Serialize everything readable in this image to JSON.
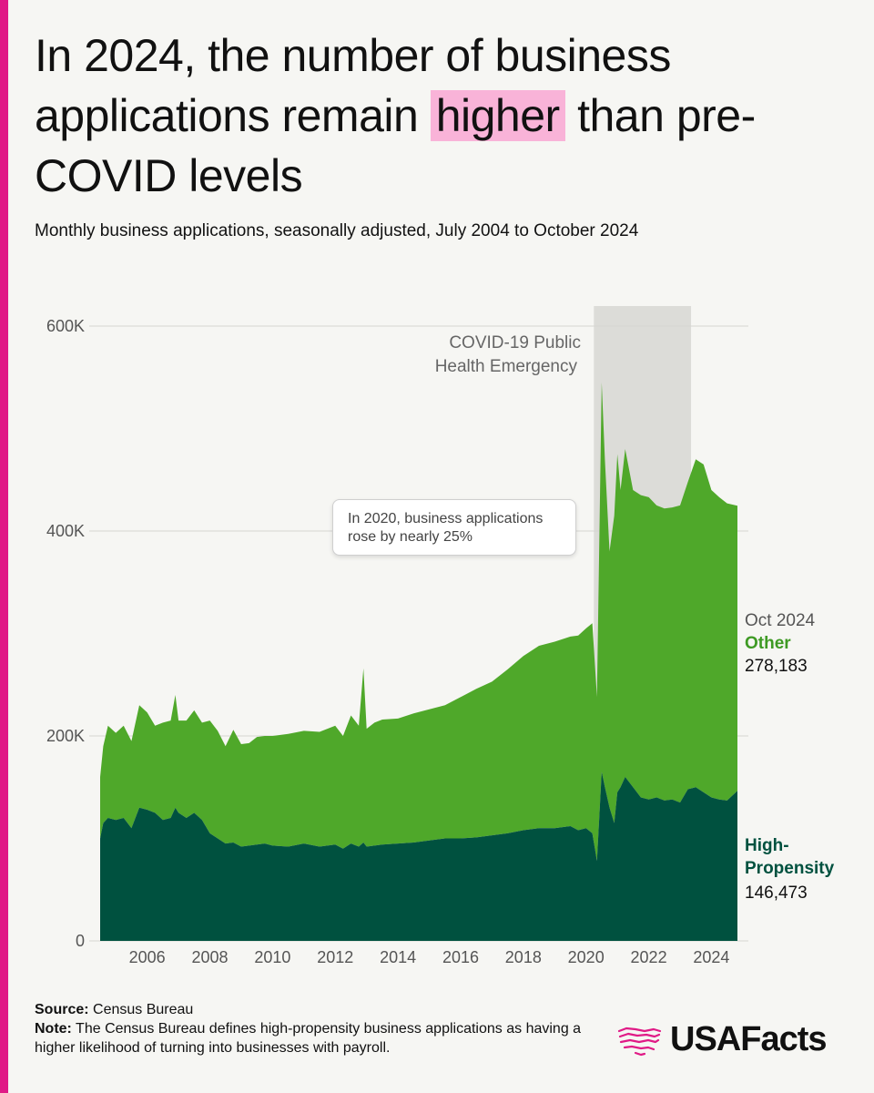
{
  "header": {
    "title_part1": "In 2024, the number of business applications remain",
    "title_highlight": "higher",
    "title_part2": "than pre-COVID levels",
    "subtitle": "Monthly business applications, seasonally adjusted, July 2004 to October 2024"
  },
  "annotations": {
    "covid_label_line1": "COVID-19 Public",
    "covid_label_line2": "Health Emergency",
    "callout_line1": "In 2020, business applications",
    "callout_line2": "rose by nearly 25%"
  },
  "end_labels": {
    "date": "Oct 2024",
    "other_label": "Other",
    "other_value": "278,183",
    "hp_label": "High-Propensity",
    "hp_value": "146,473"
  },
  "footer": {
    "source_label": "Source:",
    "source_text": "Census Bureau",
    "note_label": "Note:",
    "note_text": "The Census Bureau defines high-propensity business applications as having a higher likelihood of turning into businesses with payroll."
  },
  "logo": {
    "text": "USAFacts",
    "icon": "usa-map-lines-icon"
  },
  "colors": {
    "accent": "#e01a86",
    "highlight": "#f9b3d8",
    "other": "#4fa82a",
    "high_propensity": "#00513f",
    "covid_band": "#dcdcd8"
  },
  "chart_data": {
    "type": "area",
    "stacked": true,
    "title": "Monthly business applications, seasonally adjusted, July 2004 to October 2024",
    "ylim": [
      0,
      600000
    ],
    "yticks": [
      0,
      200000,
      400000,
      600000
    ],
    "ytick_labels": [
      "0",
      "200K",
      "400K",
      "600K"
    ],
    "xlim": [
      2004.5,
      2024.83
    ],
    "xticks": [
      2006,
      2008,
      2010,
      2012,
      2014,
      2016,
      2018,
      2020,
      2022,
      2024
    ],
    "xtick_labels": [
      "2006",
      "2008",
      "2010",
      "2012",
      "2014",
      "2016",
      "2018",
      "2020",
      "2022",
      "2024"
    ],
    "shaded_region": {
      "label": "COVID-19 Public Health Emergency",
      "x": [
        2020.25,
        2023.35
      ]
    },
    "x": [
      2004.5,
      2004.6,
      2004.75,
      2005,
      2005.25,
      2005.5,
      2005.75,
      2006,
      2006.25,
      2006.5,
      2006.75,
      2006.9,
      2007,
      2007.25,
      2007.5,
      2007.75,
      2008,
      2008.25,
      2008.5,
      2008.75,
      2009,
      2009.25,
      2009.5,
      2009.75,
      2010,
      2010.5,
      2011,
      2011.5,
      2012,
      2012.25,
      2012.5,
      2012.75,
      2012.9,
      2013,
      2013.25,
      2013.5,
      2014,
      2014.5,
      2015,
      2015.5,
      2016,
      2016.5,
      2017,
      2017.5,
      2018,
      2018.5,
      2019,
      2019.5,
      2019.75,
      2020,
      2020.2,
      2020.35,
      2020.5,
      2020.6,
      2020.75,
      2020.9,
      2021,
      2021.1,
      2021.25,
      2021.5,
      2021.75,
      2022,
      2022.25,
      2022.5,
      2022.75,
      2023,
      2023.25,
      2023.5,
      2023.75,
      2024,
      2024.25,
      2024.5,
      2024.83
    ],
    "series": [
      {
        "name": "High-Propensity",
        "values": [
          100000,
          115000,
          120000,
          118000,
          120000,
          110000,
          130000,
          128000,
          125000,
          118000,
          120000,
          130000,
          125000,
          120000,
          125000,
          118000,
          105000,
          100000,
          95000,
          96000,
          92000,
          93000,
          94000,
          95000,
          93000,
          92000,
          95000,
          92000,
          94000,
          90000,
          95000,
          92000,
          96000,
          92000,
          93000,
          94000,
          95000,
          96000,
          98000,
          100000,
          100000,
          101000,
          103000,
          105000,
          108000,
          110000,
          110000,
          112000,
          108000,
          110000,
          105000,
          78000,
          165000,
          150000,
          130000,
          115000,
          145000,
          150000,
          160000,
          150000,
          140000,
          138000,
          140000,
          137000,
          138000,
          135000,
          148000,
          150000,
          145000,
          140000,
          138000,
          137000,
          146473
        ]
      },
      {
        "name": "Other",
        "values": [
          60000,
          75000,
          90000,
          85000,
          90000,
          85000,
          100000,
          95000,
          85000,
          95000,
          95000,
          110000,
          90000,
          95000,
          100000,
          95000,
          110000,
          105000,
          95000,
          110000,
          100000,
          100000,
          105000,
          105000,
          107000,
          110000,
          110000,
          112000,
          116000,
          110000,
          125000,
          118000,
          170000,
          115000,
          120000,
          122000,
          122000,
          126000,
          128000,
          130000,
          138000,
          145000,
          150000,
          160000,
          170000,
          178000,
          182000,
          185000,
          190000,
          195000,
          205000,
          160000,
          380000,
          320000,
          250000,
          300000,
          330000,
          290000,
          320000,
          290000,
          295000,
          295000,
          285000,
          285000,
          285000,
          290000,
          300000,
          320000,
          320000,
          300000,
          295000,
          290000,
          278183
        ]
      }
    ]
  }
}
